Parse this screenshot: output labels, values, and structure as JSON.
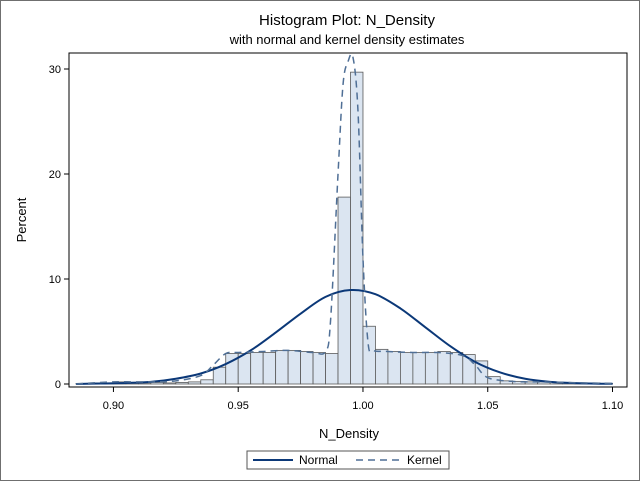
{
  "chart_data": {
    "type": "bar",
    "title": "Histogram Plot: N_Density",
    "subtitle": "with normal and kernel density estimates",
    "xlabel": "N_Density",
    "ylabel": "Percent",
    "xlim": [
      0.885,
      1.103
    ],
    "ylim": [
      0,
      31.5
    ],
    "xticks": [
      0.9,
      0.95,
      1.0,
      1.05,
      1.1
    ],
    "xtick_labels": [
      "0.90",
      "0.95",
      "1.00",
      "1.05",
      "1.10"
    ],
    "yticks": [
      0,
      10,
      20,
      30
    ],
    "ytick_labels": [
      "0",
      "10",
      "20",
      "30"
    ],
    "grid": false,
    "legend": {
      "placement": "bottom-center",
      "entries": [
        "Normal",
        "Kernel"
      ]
    },
    "colors": {
      "bar_fill": "#dbe5f1",
      "bar_stroke": "#5a5a5a",
      "normal": "#0b3878",
      "kernel": "#4f6f96"
    },
    "bin_width": 0.005,
    "bins_start": [
      0.885,
      0.89,
      0.895,
      0.9,
      0.905,
      0.91,
      0.915,
      0.92,
      0.925,
      0.93,
      0.935,
      0.94,
      0.945,
      0.95,
      0.955,
      0.96,
      0.965,
      0.97,
      0.975,
      0.98,
      0.985,
      0.99,
      0.995,
      1.0,
      1.005,
      1.01,
      1.015,
      1.02,
      1.025,
      1.03,
      1.035,
      1.04,
      1.045,
      1.05,
      1.055,
      1.06,
      1.065,
      1.07,
      1.075,
      1.08,
      1.085,
      1.09,
      1.095
    ],
    "values": [
      0.05,
      0.1,
      0.1,
      0.2,
      0.15,
      0.1,
      0.15,
      0.1,
      0.15,
      0.2,
      0.4,
      1.6,
      2.9,
      2.9,
      3.0,
      3.0,
      3.2,
      3.2,
      3.1,
      3.0,
      2.9,
      17.8,
      29.7,
      5.5,
      3.3,
      3.1,
      3.0,
      3.0,
      3.0,
      3.1,
      3.0,
      2.8,
      2.2,
      0.7,
      0.3,
      0.25,
      0.2,
      0.2,
      0.15,
      0.15,
      0.1,
      0.1,
      0.05
    ],
    "series": [
      {
        "name": "Normal",
        "style": "solid",
        "x": [
          0.885,
          0.895,
          0.905,
          0.915,
          0.925,
          0.935,
          0.945,
          0.955,
          0.965,
          0.975,
          0.985,
          0.995,
          1.005,
          1.015,
          1.025,
          1.035,
          1.045,
          1.055,
          1.065,
          1.075,
          1.085,
          1.095,
          1.1
        ],
        "y": [
          0.0,
          0.05,
          0.1,
          0.2,
          0.5,
          1.0,
          1.9,
          3.2,
          4.9,
          6.7,
          8.3,
          8.95,
          8.55,
          7.2,
          5.4,
          3.6,
          2.1,
          1.1,
          0.5,
          0.2,
          0.08,
          0.03,
          0.02
        ]
      },
      {
        "name": "Kernel",
        "style": "dashed",
        "x": [
          0.885,
          0.9,
          0.915,
          0.925,
          0.935,
          0.94,
          0.945,
          0.95,
          0.96,
          0.97,
          0.98,
          0.985,
          0.987,
          0.99,
          0.992,
          0.994,
          0.996,
          0.998,
          1.0,
          1.002,
          1.004,
          1.01,
          1.02,
          1.03,
          1.04,
          1.045,
          1.05,
          1.06,
          1.07,
          1.08,
          1.09,
          1.1
        ],
        "y": [
          0.0,
          0.2,
          0.2,
          0.3,
          0.8,
          1.8,
          2.9,
          3.0,
          3.1,
          3.2,
          3.0,
          3.1,
          6.0,
          20.0,
          28.5,
          30.7,
          31.1,
          26.0,
          12.0,
          4.0,
          3.2,
          3.1,
          3.0,
          3.0,
          2.7,
          1.8,
          0.6,
          0.25,
          0.2,
          0.15,
          0.1,
          0.05
        ]
      }
    ]
  }
}
